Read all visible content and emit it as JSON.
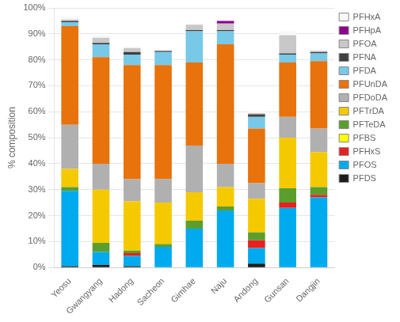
{
  "chart_data": {
    "type": "bar",
    "stacked": true,
    "categories": [
      "Yeosu",
      "Gwangyang",
      "Hadong",
      "Sacheon",
      "Gimhae",
      "Naju",
      "Andong",
      "Gunsan",
      "Dangjin"
    ],
    "series": [
      {
        "name": "PFDS",
        "color": "#1C1C1C",
        "values": [
          0.5,
          1.0,
          0.5,
          0.0,
          0.0,
          0.0,
          1.5,
          0.0,
          0.0
        ]
      },
      {
        "name": "PFOS",
        "color": "#00AAEE",
        "values": [
          29.0,
          5.0,
          4.0,
          8.0,
          15.0,
          22.0,
          6.0,
          23.0,
          27.0
        ]
      },
      {
        "name": "PFHxS",
        "color": "#E82020",
        "values": [
          0.0,
          0.0,
          1.0,
          0.0,
          0.0,
          0.0,
          3.0,
          2.0,
          1.0
        ]
      },
      {
        "name": "PFBS",
        "color": "#FFFF00",
        "values": [
          0.0,
          0.0,
          0.0,
          0.0,
          0.0,
          0.0,
          0.0,
          0.0,
          0.0
        ]
      },
      {
        "name": "PFTeDA",
        "color": "#5B9E2D",
        "values": [
          1.5,
          3.5,
          1.0,
          1.0,
          3.0,
          1.5,
          3.0,
          5.5,
          3.0
        ]
      },
      {
        "name": "PFTrDA",
        "color": "#F5C900",
        "values": [
          7.0,
          20.5,
          19.0,
          16.0,
          11.0,
          7.5,
          13.0,
          19.5,
          13.5
        ]
      },
      {
        "name": "PFDoDA",
        "color": "#B0B0B0",
        "values": [
          17.0,
          10.0,
          8.5,
          9.0,
          18.0,
          9.0,
          6.0,
          8.0,
          9.0
        ]
      },
      {
        "name": "PFUnDA",
        "color": "#E8720C",
        "values": [
          38.0,
          41.0,
          44.0,
          44.0,
          32.0,
          46.0,
          21.0,
          21.0,
          26.0
        ]
      },
      {
        "name": "PFDA",
        "color": "#78C8E8",
        "values": [
          1.5,
          5.0,
          4.0,
          5.0,
          12.0,
          5.0,
          4.5,
          3.0,
          3.0
        ]
      },
      {
        "name": "PFNA",
        "color": "#404040",
        "values": [
          0.5,
          0.5,
          1.0,
          0.5,
          0.5,
          0.5,
          1.0,
          0.5,
          0.5
        ]
      },
      {
        "name": "PFOA",
        "color": "#C8C8C8",
        "values": [
          0.5,
          2.0,
          1.5,
          0.0,
          2.0,
          2.5,
          0.5,
          7.0,
          0.5
        ]
      },
      {
        "name": "PFHpA",
        "color": "#8B008B",
        "values": [
          0.0,
          0.0,
          0.0,
          0.0,
          0.0,
          1.0,
          0.0,
          0.0,
          0.0
        ]
      },
      {
        "name": "PFHxA",
        "color": "#F8F8F8",
        "values": [
          1.0,
          1.0,
          0.5,
          0.0,
          0.5,
          0.5,
          0.5,
          1.5,
          0.5
        ]
      }
    ],
    "ylabel": "% composition",
    "ylim": [
      0,
      100
    ],
    "yticks": [
      {
        "value": 0,
        "label": "0%"
      },
      {
        "value": 10,
        "label": "10%"
      },
      {
        "value": 20,
        "label": "20%"
      },
      {
        "value": 30,
        "label": "30%"
      },
      {
        "value": 40,
        "label": "40%"
      },
      {
        "value": 50,
        "label": "50%"
      },
      {
        "value": 60,
        "label": "60%"
      },
      {
        "value": 70,
        "label": "70%"
      },
      {
        "value": 80,
        "label": "80%"
      },
      {
        "value": 90,
        "label": "90%"
      },
      {
        "value": 100,
        "label": "100%"
      }
    ],
    "grid": true,
    "legend": "right"
  }
}
